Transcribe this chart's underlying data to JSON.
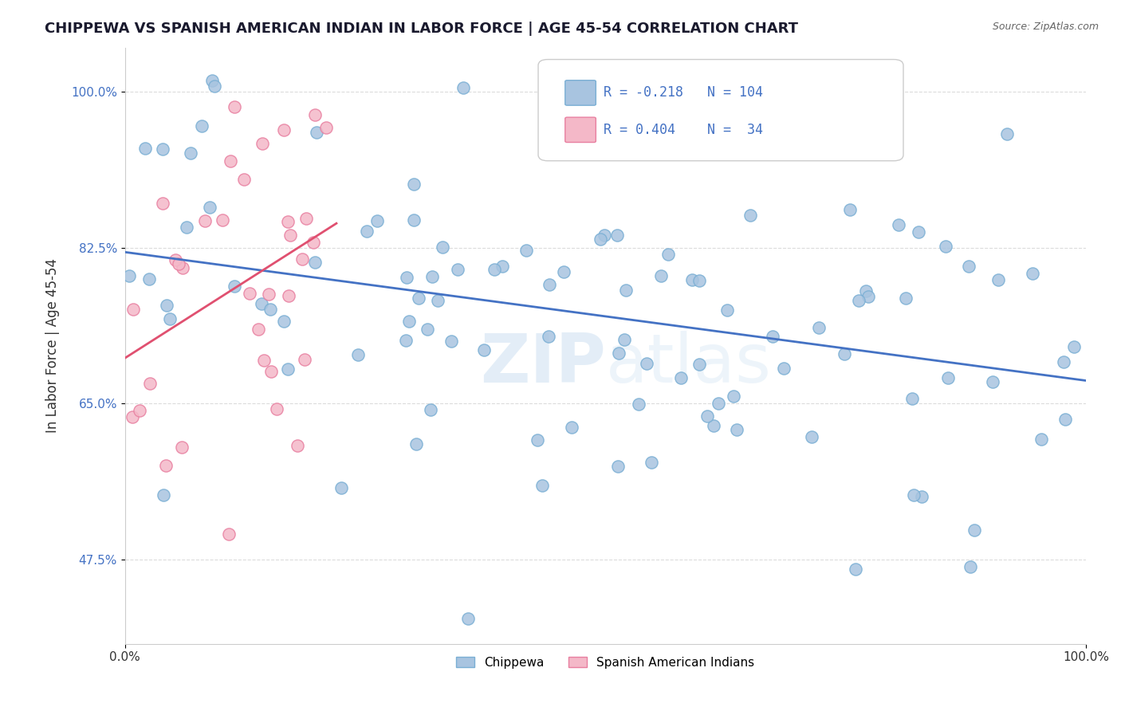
{
  "title": "CHIPPEWA VS SPANISH AMERICAN INDIAN IN LABOR FORCE | AGE 45-54 CORRELATION CHART",
  "source": "Source: ZipAtlas.com",
  "ylabel": "In Labor Force | Age 45-54",
  "xlim": [
    0.0,
    1.0
  ],
  "ylim": [
    0.38,
    1.05
  ],
  "yticks": [
    0.475,
    0.65,
    0.825,
    1.0
  ],
  "ytick_labels": [
    "47.5%",
    "65.0%",
    "82.5%",
    "100.0%"
  ],
  "xticks": [
    0.0,
    1.0
  ],
  "xtick_labels": [
    "0.0%",
    "100.0%"
  ],
  "legend_r_blue": "-0.218",
  "legend_n_blue": "104",
  "legend_r_pink": "0.404",
  "legend_n_pink": "34",
  "blue_color": "#a8c4e0",
  "blue_edge": "#7aafd4",
  "pink_color": "#f4b8c8",
  "pink_edge": "#e87fa0",
  "line_blue": "#4472c4",
  "line_pink": "#e05070",
  "watermark_zip": "ZIP",
  "watermark_atlas": "atlas",
  "blue_seed": 10,
  "pink_seed": 20,
  "n_blue": 104,
  "n_pink": 34
}
